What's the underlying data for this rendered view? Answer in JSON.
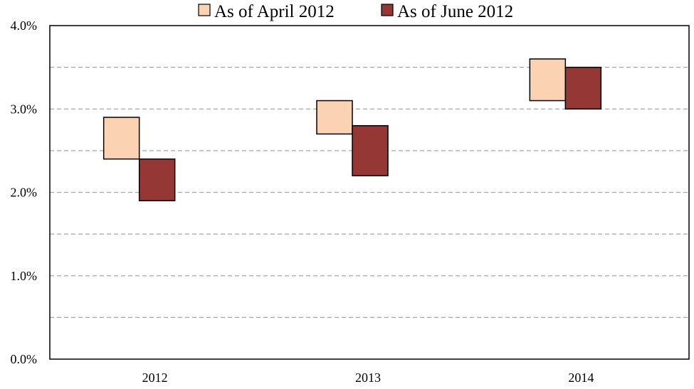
{
  "chart_data": {
    "type": "bar",
    "subtype": "floating-range",
    "title": "",
    "xlabel": "",
    "ylabel": "",
    "categories": [
      "2012",
      "2013",
      "2014"
    ],
    "ylim": [
      0,
      4
    ],
    "yticks": [
      {
        "value": 0,
        "label": "0.0%"
      },
      {
        "value": 1,
        "label": "1.0%"
      },
      {
        "value": 2,
        "label": "2.0%"
      },
      {
        "value": 3,
        "label": "3.0%"
      },
      {
        "value": 4,
        "label": "4.0%"
      }
    ],
    "grid": {
      "y_dashed_every": 0.5
    },
    "legend": {
      "position": "top"
    },
    "series": [
      {
        "name": "As of April 2012",
        "color": "#fcd3b2",
        "ranges": [
          [
            2.4,
            2.9
          ],
          [
            2.7,
            3.1
          ],
          [
            3.1,
            3.6
          ]
        ]
      },
      {
        "name": "As of June 2012",
        "color": "#953735",
        "ranges": [
          [
            1.9,
            2.4
          ],
          [
            2.2,
            2.8
          ],
          [
            3.0,
            3.5
          ]
        ]
      }
    ]
  }
}
